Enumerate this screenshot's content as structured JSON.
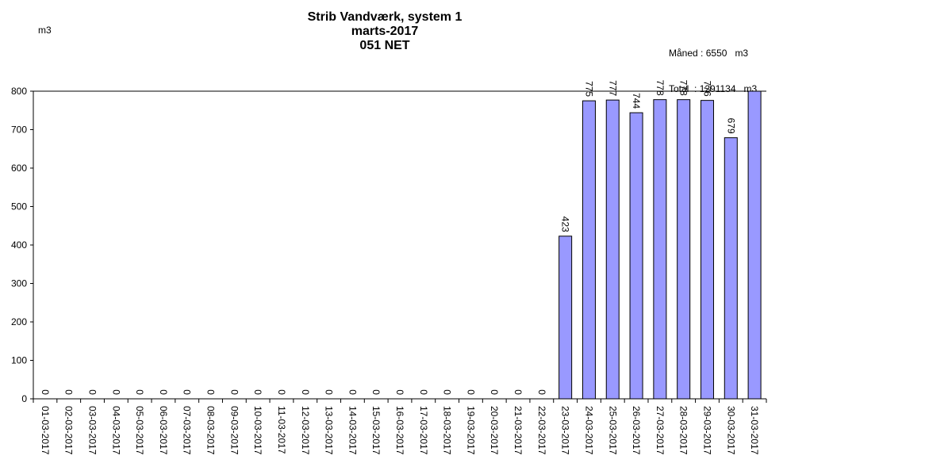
{
  "header": {
    "title_line1": "Strib Vandværk, system 1",
    "title_line2": "marts-2017",
    "title_line3": "051 NET",
    "unit": "m3",
    "month_label": "Måned",
    "month_value": "6550",
    "month_unit": "m3",
    "total_label": "Total",
    "total_value": "1291134",
    "total_unit": "m3"
  },
  "chart_data": {
    "type": "bar",
    "title": "Strib Vandværk, system 1",
    "ylabel": "m3",
    "xlabel": "",
    "ylim": [
      0,
      800
    ],
    "yticks": [
      0,
      100,
      200,
      300,
      400,
      500,
      600,
      700,
      800
    ],
    "grid": false,
    "colors": {
      "bar": "#9999ff",
      "bar_stroke": "#000000"
    },
    "categories": [
      "01-03-2017",
      "02-03-2017",
      "03-03-2017",
      "04-03-2017",
      "05-03-2017",
      "06-03-2017",
      "07-03-2017",
      "08-03-2017",
      "09-03-2017",
      "10-03-2017",
      "11-03-2017",
      "12-03-2017",
      "13-03-2017",
      "14-03-2017",
      "15-03-2017",
      "16-03-2017",
      "17-03-2017",
      "18-03-2017",
      "19-03-2017",
      "20-03-2017",
      "21-03-2017",
      "22-03-2017",
      "23-03-2017",
      "24-03-2017",
      "25-03-2017",
      "26-03-2017",
      "27-03-2017",
      "28-03-2017",
      "29-03-2017",
      "30-03-2017",
      "31-03-2017"
    ],
    "values": [
      0,
      0,
      0,
      0,
      0,
      0,
      0,
      0,
      0,
      0,
      0,
      0,
      0,
      0,
      0,
      0,
      0,
      0,
      0,
      0,
      0,
      0,
      423,
      775,
      777,
      744,
      778,
      778,
      776,
      679,
      820
    ],
    "data_labels": [
      "0",
      "0",
      "0",
      "0",
      "0",
      "0",
      "0",
      "0",
      "0",
      "0",
      "0",
      "0",
      "0",
      "0",
      "0",
      "0",
      "0",
      "0",
      "0",
      "0",
      "0",
      "0",
      "423",
      "775",
      "777",
      "744",
      "778",
      "778",
      "776",
      "679",
      ""
    ]
  }
}
